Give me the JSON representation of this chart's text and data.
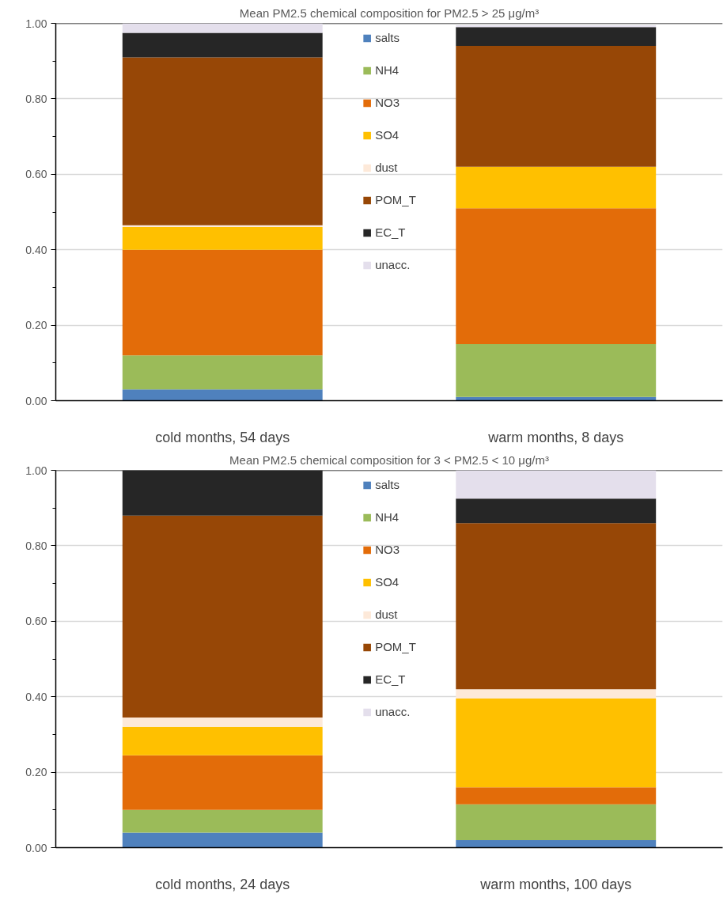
{
  "chart_data": [
    {
      "type": "bar",
      "stacked": true,
      "title": "Mean PM2.5 chemical composition for PM2.5 > 25 μg/m³",
      "categories": [
        "cold months, 54 days",
        "warm months, 8 days"
      ],
      "series": [
        {
          "name": "salts",
          "color": "#4f81bd",
          "values": [
            0.03,
            0.01
          ]
        },
        {
          "name": "NH4",
          "color": "#9bbb59",
          "values": [
            0.09,
            0.14
          ]
        },
        {
          "name": "NO3",
          "color": "#e36c09",
          "values": [
            0.28,
            0.36
          ]
        },
        {
          "name": "SO4",
          "color": "#ffc000",
          "values": [
            0.06,
            0.11
          ]
        },
        {
          "name": "dust",
          "color": "#fde9d9",
          "values": [
            0.005,
            0
          ]
        },
        {
          "name": "POM_T",
          "color": "#974706",
          "values": [
            0.445,
            0.32
          ]
        },
        {
          "name": "EC_T",
          "color": "#262626",
          "values": [
            0.065,
            0.05
          ]
        },
        {
          "name": "unacc.",
          "color": "#e4dfec",
          "values": [
            0.025,
            0.005
          ]
        }
      ],
      "ylim": [
        0,
        1
      ],
      "yticks": [
        {
          "value": 0,
          "label": "0.00"
        },
        {
          "value": 0.2,
          "label": "0.20"
        },
        {
          "value": 0.4,
          "label": "0.40"
        },
        {
          "value": 0.6,
          "label": "0.60"
        },
        {
          "value": 0.8,
          "label": "0.80"
        },
        {
          "value": 1,
          "label": "1.00"
        }
      ],
      "grid": "y",
      "legend": "top"
    },
    {
      "type": "bar",
      "stacked": true,
      "title": "Mean PM2.5 chemical composition for 3 < PM2.5 < 10 μg/m³",
      "categories": [
        "cold months, 24 days",
        "warm months, 100 days"
      ],
      "series": [
        {
          "name": "salts",
          "color": "#4f81bd",
          "values": [
            0.04,
            0.02
          ]
        },
        {
          "name": "NH4",
          "color": "#9bbb59",
          "values": [
            0.06,
            0.095
          ]
        },
        {
          "name": "NO3",
          "color": "#e36c09",
          "values": [
            0.145,
            0.045
          ]
        },
        {
          "name": "SO4",
          "color": "#ffc000",
          "values": [
            0.075,
            0.235
          ]
        },
        {
          "name": "dust",
          "color": "#fde9d9",
          "values": [
            0.025,
            0.025
          ]
        },
        {
          "name": "POM_T",
          "color": "#974706",
          "values": [
            0.535,
            0.44
          ]
        },
        {
          "name": "EC_T",
          "color": "#262626",
          "values": [
            0.12,
            0.065
          ]
        },
        {
          "name": "unacc.",
          "color": "#e4dfec",
          "values": [
            0,
            0.075
          ]
        }
      ],
      "ylim": [
        0,
        1
      ],
      "yticks": [
        {
          "value": 0,
          "label": "0.00"
        },
        {
          "value": 0.2,
          "label": "0.20"
        },
        {
          "value": 0.4,
          "label": "0.40"
        },
        {
          "value": 0.6,
          "label": "0.60"
        },
        {
          "value": 0.8,
          "label": "0.80"
        },
        {
          "value": 1,
          "label": "1.00"
        }
      ],
      "grid": "y",
      "legend": "top"
    }
  ]
}
